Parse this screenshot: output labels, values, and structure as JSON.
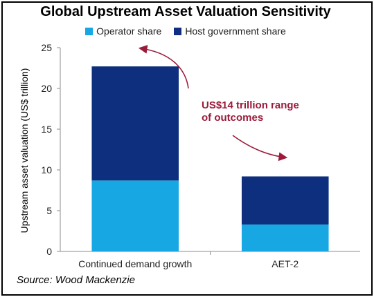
{
  "chart_data": {
    "type": "bar",
    "stacked": true,
    "title": "Global Upstream Asset Valuation Sensitivity",
    "categories": [
      "Continued demand growth",
      "AET-2"
    ],
    "series": [
      {
        "name": "Operator share",
        "values": [
          8.7,
          3.3
        ],
        "color": "#17a8e3"
      },
      {
        "name": "Host government share",
        "values": [
          14.0,
          5.9
        ],
        "color": "#0d2f7d"
      }
    ],
    "ylabel": "Upstream asset valuation (US$ trillion)",
    "xlabel": "",
    "ylim": [
      0,
      25
    ],
    "yticks": [
      0,
      5,
      10,
      15,
      20,
      25
    ],
    "grid": false,
    "legend_position": "top",
    "annotation": {
      "lines": [
        "US$14 trillion range",
        "of outcomes"
      ],
      "color": "#9b1b3a"
    }
  },
  "source": "Source: Wood Mackenzie"
}
